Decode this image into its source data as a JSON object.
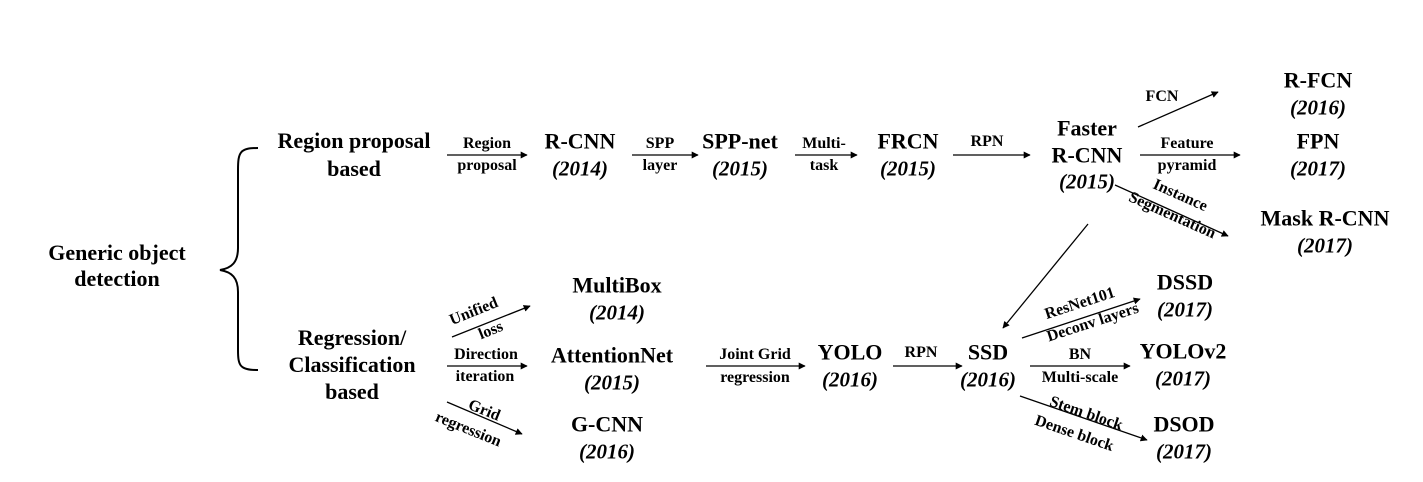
{
  "root": {
    "line1": "Generic object",
    "line2": "detection"
  },
  "branches": {
    "region": {
      "line1": "Region proposal",
      "line2": "based"
    },
    "regression": {
      "line1": "Regression/",
      "line2": "Classification",
      "line3": "based"
    }
  },
  "methods": {
    "rcnn": {
      "name": "R-CNN",
      "year": "(2014)"
    },
    "sppnet": {
      "name": "SPP-net",
      "year": "(2015)"
    },
    "frcn": {
      "name": "FRCN",
      "year": "(2015)"
    },
    "faster_rcnn": {
      "name1": "Faster",
      "name2": "R-CNN",
      "year": "(2015)"
    },
    "rfcn": {
      "name": "R-FCN",
      "year": "(2016)"
    },
    "fpn": {
      "name": "FPN",
      "year": "(2017)"
    },
    "mask_rcnn": {
      "name": "Mask R-CNN",
      "year": "(2017)"
    },
    "multibox": {
      "name": "MultiBox",
      "year": "(2014)"
    },
    "attentionnet": {
      "name": "AttentionNet",
      "year": "(2015)"
    },
    "gcnn": {
      "name": "G-CNN",
      "year": "(2016)"
    },
    "yolo": {
      "name": "YOLO",
      "year": "(2016)"
    },
    "ssd": {
      "name": "SSD",
      "year": "(2016)"
    },
    "dssd": {
      "name": "DSSD",
      "year": "(2017)"
    },
    "yolov2": {
      "name": "YOLOv2",
      "year": "(2017)"
    },
    "dsod": {
      "name": "DSOD",
      "year": "(2017)"
    }
  },
  "edges": {
    "region_proposal": {
      "top": "Region",
      "bottom": "proposal"
    },
    "spp_layer": {
      "top": "SPP",
      "bottom": "layer"
    },
    "multi_task": {
      "top": "Multi-",
      "bottom": "task"
    },
    "rpn_1": {
      "top": "RPN"
    },
    "fcn": {
      "top": "FCN"
    },
    "feature_pyramid": {
      "top": "Feature",
      "bottom": "pyramid"
    },
    "instance_seg": {
      "top": "Instance",
      "bottom": "Segmentation"
    },
    "unified_loss": {
      "top": "Unified",
      "bottom": "loss"
    },
    "direction_iter": {
      "top": "Direction",
      "bottom": "iteration"
    },
    "grid_regression": {
      "top": "Grid",
      "bottom": "regression"
    },
    "joint_grid": {
      "top": "Joint Grid",
      "bottom": "regression"
    },
    "rpn_2": {
      "top": "RPN"
    },
    "resnet_deconv": {
      "top": "ResNet101",
      "bottom": "Deconv layers"
    },
    "bn_multiscale": {
      "top": "BN",
      "bottom": "Multi-scale"
    },
    "stem_dense": {
      "top": "Stem block",
      "bottom": "Dense block"
    }
  }
}
